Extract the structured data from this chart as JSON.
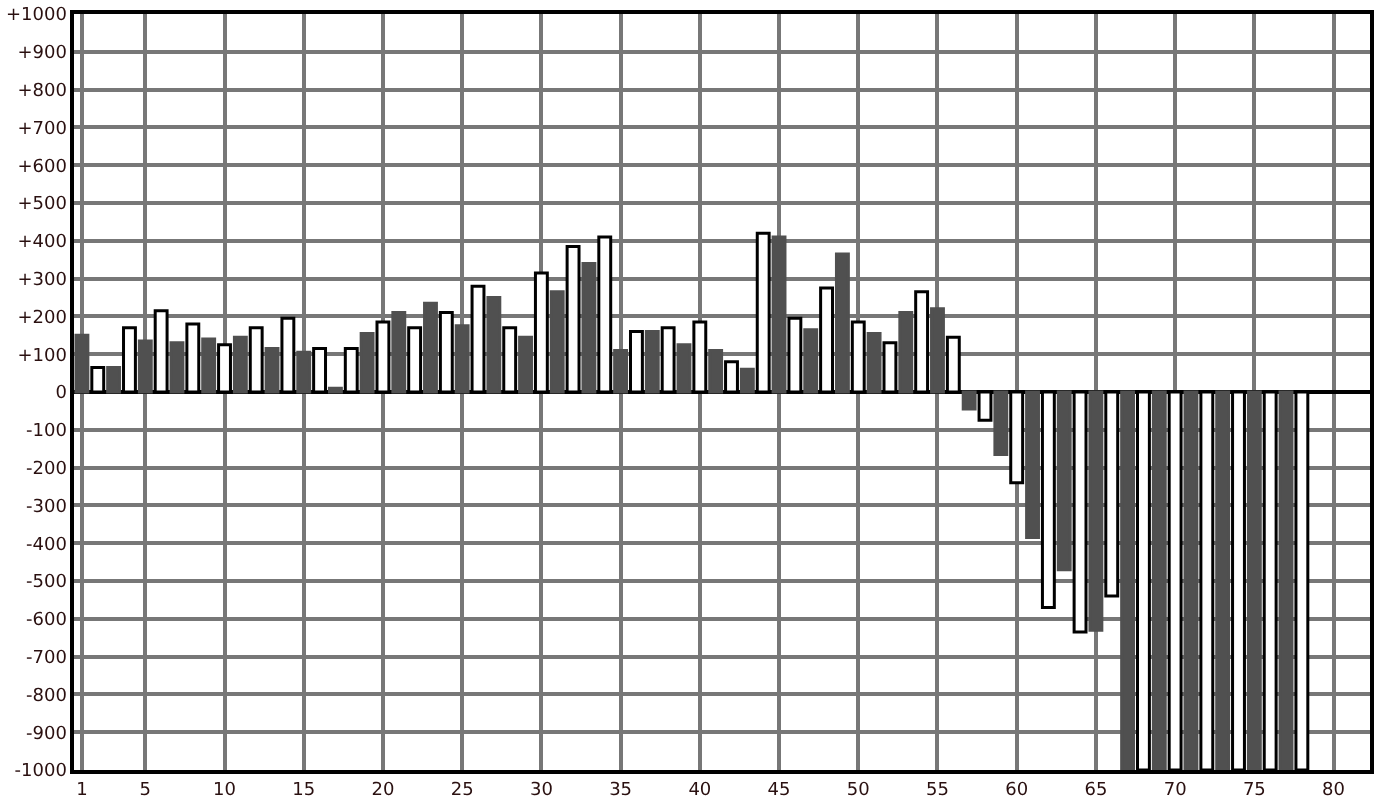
{
  "chart_data": {
    "type": "bar",
    "series": [
      {
        "color": "#505050",
        "x": [
          1,
          3,
          5,
          7,
          9,
          11,
          13,
          15,
          17,
          19,
          21,
          23,
          25,
          27,
          29,
          31,
          33,
          35,
          37,
          39,
          41,
          43,
          45,
          47,
          49,
          51,
          53,
          55,
          57,
          59,
          61,
          63,
          65,
          67,
          69,
          71,
          73,
          75,
          77
        ],
        "values": [
          150,
          65,
          135,
          130,
          140,
          145,
          115,
          105,
          10,
          155,
          210,
          235,
          175,
          250,
          145,
          265,
          340,
          110,
          160,
          125,
          110,
          60,
          410,
          165,
          365,
          155,
          210,
          220,
          -45,
          -165,
          -385,
          -470,
          -630,
          -1000,
          -1000,
          -1000,
          -1000,
          -1000,
          -1000
        ]
      },
      {
        "color": "#ffffff",
        "x": [
          2,
          4,
          6,
          8,
          10,
          12,
          14,
          16,
          18,
          20,
          22,
          24,
          26,
          28,
          30,
          32,
          34,
          36,
          38,
          40,
          42,
          44,
          46,
          48,
          50,
          52,
          54,
          56,
          58,
          60,
          62,
          64,
          66,
          68,
          70,
          72,
          74,
          76,
          78
        ],
        "values": [
          65,
          170,
          215,
          180,
          125,
          170,
          195,
          115,
          115,
          185,
          170,
          210,
          280,
          170,
          315,
          385,
          410,
          160,
          170,
          185,
          80,
          420,
          195,
          275,
          185,
          130,
          265,
          145,
          -75,
          -240,
          -570,
          -635,
          -540,
          -1000,
          -1000,
          -1000,
          -1000,
          -1000,
          -1000
        ]
      }
    ],
    "xlim": [
      0.5,
      82.3
    ],
    "xticks": [
      1,
      5,
      10,
      15,
      20,
      25,
      30,
      35,
      40,
      45,
      50,
      55,
      60,
      65,
      70,
      75,
      80
    ],
    "ylim": [
      -1000,
      1000
    ],
    "yticks": [
      {
        "value": -1000,
        "label": "-1000"
      },
      {
        "value": -900,
        "label": "-900"
      },
      {
        "value": -800,
        "label": "-800"
      },
      {
        "value": -700,
        "label": "-700"
      },
      {
        "value": -600,
        "label": "-600"
      },
      {
        "value": -500,
        "label": "-500"
      },
      {
        "value": -400,
        "label": "-400"
      },
      {
        "value": -300,
        "label": "-300"
      },
      {
        "value": -200,
        "label": "-200"
      },
      {
        "value": -100,
        "label": "-100"
      },
      {
        "value": 0,
        "label": "0"
      },
      {
        "value": 100,
        "label": "+100"
      },
      {
        "value": 200,
        "label": "+200"
      },
      {
        "value": 300,
        "label": "+300"
      },
      {
        "value": 400,
        "label": "+400"
      },
      {
        "value": 500,
        "label": "+500"
      },
      {
        "value": 600,
        "label": "+600"
      },
      {
        "value": 700,
        "label": "+700"
      },
      {
        "value": 800,
        "label": "+800"
      },
      {
        "value": 900,
        "label": "+900"
      },
      {
        "value": 1000,
        "label": "+1000"
      }
    ],
    "grid": true
  }
}
